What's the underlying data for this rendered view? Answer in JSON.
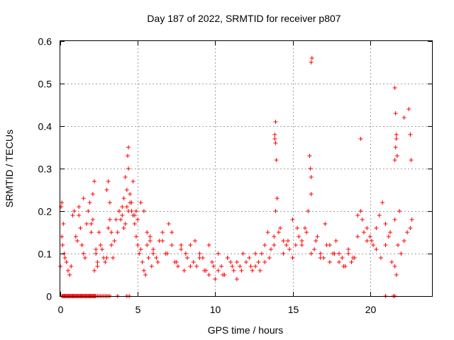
{
  "chart_data": {
    "type": "scatter",
    "title": "Day 187 of 2022, SRMTID for receiver p807",
    "xlabel": "GPS time / hours",
    "ylabel": "SRMTID / TECUs",
    "xlim": [
      0,
      24
    ],
    "ylim": [
      0,
      0.6
    ],
    "xticks": [
      0,
      5,
      10,
      15,
      20
    ],
    "xtick_labels": [
      "0",
      "5",
      "10",
      "15",
      "20"
    ],
    "yticks": [
      0,
      0.1,
      0.2,
      0.3,
      0.4,
      0.5,
      0.6
    ],
    "ytick_labels": [
      "0",
      "0.1",
      "0.2",
      "0.3",
      "0.4",
      "0.5",
      "0.6"
    ],
    "grid": true,
    "marker": "+",
    "color": "#ff0000",
    "series": [
      {
        "name": "SRMTID",
        "x": [
          0.0,
          0.1,
          0.15,
          0.2,
          0.25,
          0.3,
          0.4,
          0.5,
          0.6,
          0.7,
          0.8,
          0.9,
          1.0,
          1.1,
          1.2,
          1.3,
          1.4,
          1.5,
          1.6,
          1.7,
          1.8,
          1.9,
          2.0,
          2.1,
          2.2,
          2.3,
          2.4,
          2.5,
          2.6,
          2.7,
          2.8,
          2.9,
          3.0,
          3.1,
          3.2,
          3.3,
          3.8,
          4.0,
          4.1,
          4.2,
          4.3,
          4.4,
          4.5,
          4.6,
          4.7,
          4.8,
          4.9,
          5.0,
          5.1,
          5.2,
          5.3,
          5.4,
          5.5,
          5.6,
          5.7,
          5.8,
          5.9,
          6.0,
          6.2,
          6.4,
          6.6,
          6.8,
          7.0,
          7.2,
          7.4,
          7.6,
          7.8,
          8.0,
          8.2,
          8.4,
          8.6,
          8.8,
          9.0,
          9.2,
          9.4,
          9.6,
          9.8,
          10.0,
          10.2,
          10.4,
          10.6,
          10.8,
          11.0,
          11.2,
          11.4,
          11.6,
          11.8,
          12.0,
          12.2,
          12.4,
          12.6,
          12.8,
          13.0,
          13.2,
          13.4,
          13.6,
          13.8,
          13.9,
          14.0,
          14.2,
          14.4,
          14.6,
          14.8,
          15.0,
          15.2,
          15.4,
          15.6,
          15.8,
          16.0,
          16.2,
          16.4,
          16.6,
          16.8,
          17.0,
          17.2,
          17.4,
          17.6,
          17.8,
          18.0,
          18.2,
          18.4,
          18.6,
          18.8,
          19.0,
          19.2,
          19.4,
          19.6,
          19.8,
          20.0,
          20.2,
          20.4,
          20.6,
          20.8,
          21.0,
          21.2,
          21.4,
          21.6,
          21.7,
          21.8,
          22.0,
          22.2,
          22.4,
          22.6,
          22.7,
          0.05,
          0.1,
          1.2,
          1.5,
          2.0,
          2.1,
          2.2,
          2.3,
          2.4,
          3.0,
          3.1,
          3.2,
          3.3,
          3.4,
          3.5,
          3.6,
          3.7,
          3.8,
          3.9,
          4.0,
          4.1,
          4.2,
          4.3,
          4.4,
          4.5,
          4.6,
          4.7,
          4.8,
          4.9,
          5.0,
          5.2,
          5.4,
          5.6,
          5.8,
          6.0,
          6.3,
          6.6,
          6.9,
          7.2,
          7.5,
          7.8,
          8.1,
          8.4,
          8.7,
          9.0,
          9.3,
          9.6,
          9.9,
          10.2,
          10.5,
          10.8,
          11.1,
          11.4,
          11.7,
          12.0,
          12.3,
          12.6,
          12.9,
          13.2,
          13.5,
          13.8,
          14.1,
          14.4,
          14.7,
          15.0,
          15.3,
          15.6,
          15.9,
          16.2,
          16.5,
          16.8,
          17.1,
          17.4,
          17.7,
          18.0,
          18.3,
          18.6,
          18.9,
          19.2,
          19.5,
          19.8,
          20.1,
          20.4,
          20.7,
          21.0,
          21.3,
          21.6,
          21.9,
          22.2,
          22.5,
          13.85,
          13.9,
          13.95,
          13.9,
          13.85,
          16.1,
          16.15,
          16.2,
          16.25,
          16.2,
          21.6,
          21.65,
          21.7,
          21.65,
          21.6,
          21.7,
          21.75,
          22.6,
          22.65,
          22.6,
          19.4,
          4.35,
          4.4,
          4.45,
          4.3,
          0.1,
          0.15,
          0.2,
          0.25,
          0.3,
          0.35,
          0.4,
          0.45,
          0.5,
          0.55,
          0.6,
          0.65,
          0.7,
          0.75,
          0.8,
          0.85,
          0.9,
          0.95,
          1.0,
          1.05,
          1.1,
          1.15,
          1.2,
          1.25,
          1.3,
          1.35,
          1.4,
          1.45,
          1.5,
          1.55,
          1.6,
          1.65,
          1.7,
          1.75,
          1.8,
          1.85,
          1.9,
          1.95,
          2.0,
          2.05,
          2.1,
          2.15,
          2.2,
          2.25,
          2.3,
          2.4,
          2.5,
          2.6,
          2.7,
          2.8,
          2.9,
          3.0,
          3.1,
          3.2,
          3.7,
          21.0,
          21.5,
          21.6
        ],
        "y": [
          0.07,
          0.14,
          0.12,
          0.17,
          0.1,
          0.09,
          0.08,
          0.06,
          0.05,
          0.07,
          0.19,
          0.2,
          0.14,
          0.13,
          0.21,
          0.16,
          0.12,
          0.1,
          0.09,
          0.17,
          0.2,
          0.22,
          0.17,
          0.24,
          0.27,
          0.1,
          0.07,
          0.15,
          0.12,
          0.11,
          0.09,
          0.08,
          0.09,
          0.16,
          0.18,
          0.15,
          0.2,
          0.21,
          0.23,
          0.28,
          0.25,
          0.3,
          0.22,
          0.2,
          0.19,
          0.17,
          0.14,
          0.12,
          0.1,
          0.11,
          0.08,
          0.06,
          0.05,
          0.12,
          0.09,
          0.14,
          0.07,
          0.11,
          0.09,
          0.13,
          0.15,
          0.1,
          0.17,
          0.12,
          0.08,
          0.07,
          0.11,
          0.06,
          0.09,
          0.12,
          0.08,
          0.07,
          0.1,
          0.09,
          0.06,
          0.05,
          0.08,
          0.04,
          0.06,
          0.07,
          0.05,
          0.09,
          0.08,
          0.06,
          0.08,
          0.07,
          0.1,
          0.08,
          0.09,
          0.06,
          0.07,
          0.08,
          0.1,
          0.12,
          0.15,
          0.11,
          0.14,
          0.2,
          0.23,
          0.16,
          0.13,
          0.12,
          0.11,
          0.09,
          0.12,
          0.14,
          0.13,
          0.16,
          0.2,
          0.24,
          0.11,
          0.14,
          0.1,
          0.09,
          0.12,
          0.08,
          0.1,
          0.13,
          0.1,
          0.09,
          0.07,
          0.1,
          0.08,
          0.09,
          0.19,
          0.2,
          0.15,
          0.13,
          0.14,
          0.12,
          0.16,
          0.19,
          0.22,
          0.17,
          0.14,
          0.08,
          0.07,
          0.05,
          0.12,
          0.1,
          0.13,
          0.15,
          0.16,
          0.18,
          0.21,
          0.22,
          0.19,
          0.23,
          0.15,
          0.18,
          0.06,
          0.11,
          0.08,
          0.25,
          0.27,
          0.22,
          0.12,
          0.09,
          0.13,
          0.18,
          0.15,
          0.2,
          0.18,
          0.19,
          0.16,
          0.17,
          0.21,
          0.2,
          0.24,
          0.22,
          0.27,
          0.19,
          0.2,
          0.18,
          0.22,
          0.2,
          0.15,
          0.13,
          0.1,
          0.08,
          0.13,
          0.1,
          0.15,
          0.08,
          0.12,
          0.1,
          0.07,
          0.13,
          0.09,
          0.06,
          0.12,
          0.07,
          0.1,
          0.05,
          0.09,
          0.07,
          0.04,
          0.06,
          0.08,
          0.07,
          0.1,
          0.06,
          0.08,
          0.09,
          0.12,
          0.15,
          0.1,
          0.13,
          0.18,
          0.16,
          0.12,
          0.15,
          0.1,
          0.13,
          0.09,
          0.17,
          0.12,
          0.1,
          0.08,
          0.07,
          0.11,
          0.09,
          0.14,
          0.18,
          0.16,
          0.13,
          0.11,
          0.09,
          0.12,
          0.15,
          0.18,
          0.2,
          0.42,
          0.44,
          0.38,
          0.36,
          0.32,
          0.41,
          0.37,
          0.33,
          0.3,
          0.28,
          0.56,
          0.55,
          0.49,
          0.43,
          0.38,
          0.35,
          0.32,
          0.37,
          0.33,
          0.38,
          0.32,
          0.38,
          0.37,
          0.33,
          0.35,
          0,
          0,
          0,
          0,
          0,
          0,
          0,
          0,
          0,
          0,
          0,
          0,
          0,
          0,
          0,
          0,
          0,
          0,
          0,
          0,
          0,
          0,
          0,
          0,
          0,
          0,
          0,
          0,
          0,
          0,
          0,
          0,
          0,
          0,
          0,
          0,
          0,
          0,
          0,
          0,
          0,
          0,
          0,
          0,
          0,
          0,
          0,
          0,
          0,
          0,
          0,
          0,
          0,
          0,
          0,
          0,
          0,
          0,
          0,
          0
        ]
      }
    ]
  }
}
